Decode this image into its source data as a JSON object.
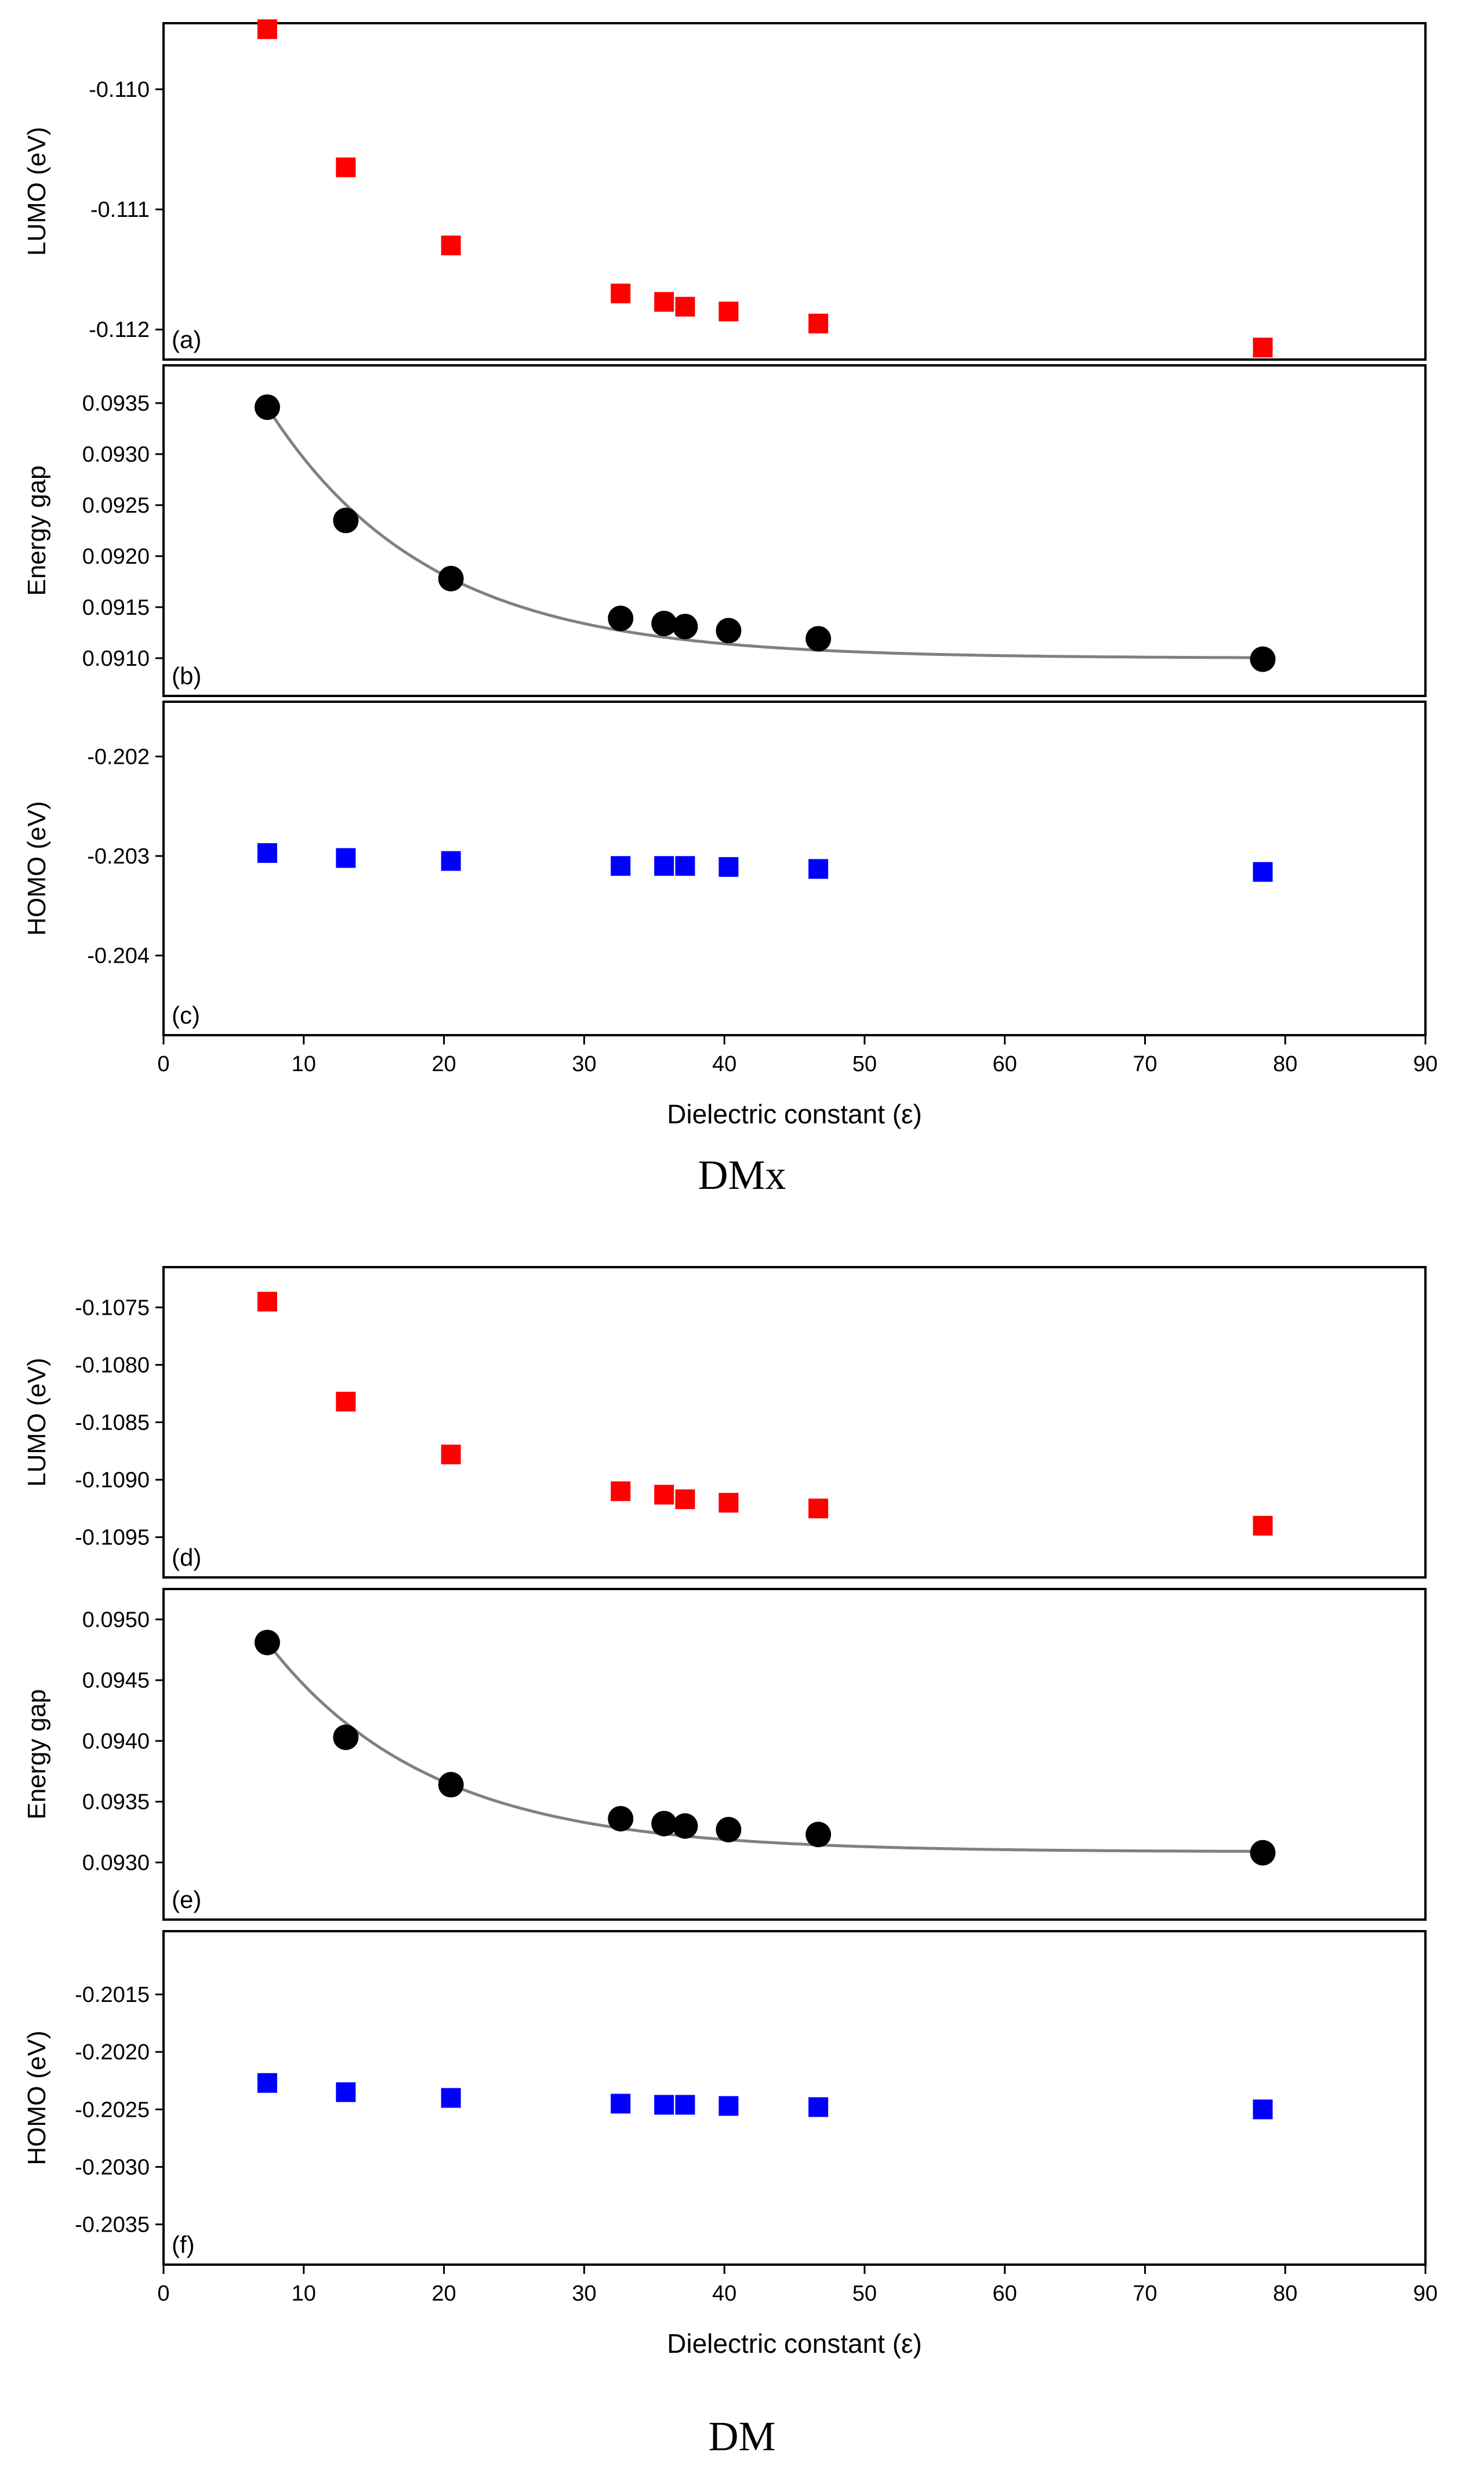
{
  "figure_groups": [
    {
      "caption": "DMx",
      "xlabel": "Dielectric constant (ε)",
      "xlim": [
        0,
        90
      ],
      "xticks": [
        0,
        10,
        20,
        30,
        40,
        50,
        60,
        70,
        80,
        90
      ]
    },
    {
      "caption": "DM",
      "xlabel": "Dielectric constant (ε)",
      "xlim": [
        0,
        90
      ],
      "xticks": [
        0,
        10,
        20,
        30,
        40,
        50,
        60,
        70,
        80,
        90
      ]
    }
  ],
  "chart_data": [
    {
      "panel_label": "(a)",
      "type": "scatter",
      "ylabel": "LUMO (eV)",
      "ylim": [
        -0.11225,
        -0.10945
      ],
      "yticks": [
        -0.11,
        -0.111,
        -0.112
      ],
      "ytick_labels": [
        "-0.110",
        "-0.111",
        "-0.112"
      ],
      "marker": "square",
      "color": "#ff0000",
      "x": [
        7.4,
        13.0,
        20.5,
        32.6,
        35.7,
        37.2,
        40.3,
        46.7,
        78.4
      ],
      "y": [
        -0.1095,
        -0.11065,
        -0.1113,
        -0.1117,
        -0.11177,
        -0.11181,
        -0.11185,
        -0.11195,
        -0.11215
      ],
      "fit": false
    },
    {
      "panel_label": "(b)",
      "type": "scatter",
      "ylabel": "Energy gap",
      "ylim": [
        0.09063,
        0.09387
      ],
      "yticks": [
        0.091,
        0.0915,
        0.092,
        0.0925,
        0.093,
        0.0935
      ],
      "ytick_labels": [
        "0.0910",
        "0.0915",
        "0.0920",
        "0.0925",
        "0.0930",
        "0.0935"
      ],
      "marker": "circle",
      "color": "#000000",
      "x": [
        7.4,
        13.0,
        20.5,
        32.6,
        35.7,
        37.2,
        40.3,
        46.7,
        78.4
      ],
      "y": [
        0.09346,
        0.09235,
        0.09178,
        0.09139,
        0.09134,
        0.09131,
        0.09127,
        0.09119,
        0.09099
      ],
      "fit": true,
      "fit_color": "#808080"
    },
    {
      "panel_label": "(c)",
      "type": "scatter",
      "ylabel": "HOMO (eV)",
      "ylim": [
        -0.2048,
        -0.20145
      ],
      "yticks": [
        -0.202,
        -0.203,
        -0.204
      ],
      "ytick_labels": [
        "-0.202",
        "-0.203",
        "-0.204"
      ],
      "marker": "square",
      "color": "#0000ff",
      "x": [
        7.4,
        13.0,
        20.5,
        32.6,
        35.7,
        37.2,
        40.3,
        46.7,
        78.4
      ],
      "y": [
        -0.20297,
        -0.20302,
        -0.20305,
        -0.2031,
        -0.2031,
        -0.2031,
        -0.20311,
        -0.20313,
        -0.20316
      ],
      "fit": false
    },
    {
      "panel_label": "(d)",
      "type": "scatter",
      "ylabel": "LUMO (eV)",
      "ylim": [
        -0.10985,
        -0.10715
      ],
      "yticks": [
        -0.1075,
        -0.108,
        -0.1085,
        -0.109,
        -0.1095
      ],
      "ytick_labels": [
        "-0.1075",
        "-0.1080",
        "-0.1085",
        "-0.1090",
        "-0.1095"
      ],
      "marker": "square",
      "color": "#ff0000",
      "x": [
        7.4,
        13.0,
        20.5,
        32.6,
        35.7,
        37.2,
        40.3,
        46.7,
        78.4
      ],
      "y": [
        -0.10745,
        -0.10832,
        -0.10878,
        -0.1091,
        -0.10913,
        -0.10917,
        -0.1092,
        -0.10925,
        -0.1094
      ],
      "fit": false
    },
    {
      "panel_label": "(e)",
      "type": "scatter",
      "ylabel": "Energy gap",
      "ylim": [
        0.09253,
        0.09525
      ],
      "yticks": [
        0.093,
        0.0935,
        0.094,
        0.0945,
        0.095
      ],
      "ytick_labels": [
        "0.0930",
        "0.0935",
        "0.0940",
        "0.0945",
        "0.0950"
      ],
      "marker": "circle",
      "color": "#000000",
      "x": [
        7.4,
        13.0,
        20.5,
        32.6,
        35.7,
        37.2,
        40.3,
        46.7,
        78.4
      ],
      "y": [
        0.09481,
        0.09403,
        0.09364,
        0.09336,
        0.09332,
        0.0933,
        0.09327,
        0.09323,
        0.09308
      ],
      "fit": true,
      "fit_color": "#808080"
    },
    {
      "panel_label": "(f)",
      "type": "scatter",
      "ylabel": "HOMO (eV)",
      "ylim": [
        -0.20385,
        -0.20095
      ],
      "yticks": [
        -0.2015,
        -0.202,
        -0.2025,
        -0.203,
        -0.2035
      ],
      "ytick_labels": [
        "-0.2015",
        "-0.2020",
        "-0.2025",
        "-0.2030",
        "-0.2035"
      ],
      "marker": "square",
      "color": "#0000ff",
      "x": [
        7.4,
        13.0,
        20.5,
        32.6,
        35.7,
        37.2,
        40.3,
        46.7,
        78.4
      ],
      "y": [
        -0.20227,
        -0.20235,
        -0.2024,
        -0.20245,
        -0.20246,
        -0.20246,
        -0.20247,
        -0.20248,
        -0.2025
      ],
      "fit": false
    }
  ]
}
